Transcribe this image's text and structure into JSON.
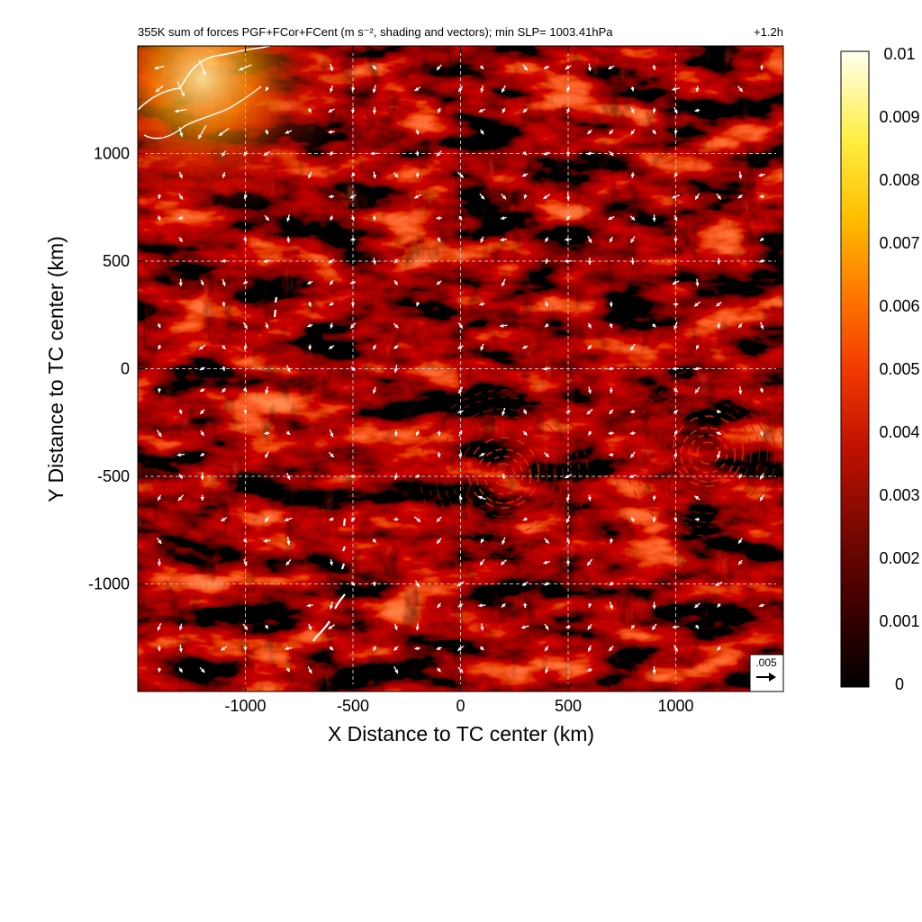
{
  "chart_data": {
    "type": "heatmap",
    "title": "355K sum of forces PGF+FCor+FCent (m s⁻², shading and vectors); min SLP= 1003.41hPa",
    "time_label": "+1.2h",
    "xlabel": "X Distance to TC center (km)",
    "ylabel": "Y Distance to TC center (km)",
    "xlim": [
      -1500,
      1500
    ],
    "ylim": [
      -1500,
      1500
    ],
    "x_ticks": [
      {
        "value": -1000,
        "label": "-1000"
      },
      {
        "value": -500,
        "label": "-500"
      },
      {
        "value": 0,
        "label": "0"
      },
      {
        "value": 500,
        "label": "500"
      },
      {
        "value": 1000,
        "label": "1000"
      }
    ],
    "y_ticks": [
      {
        "value": 1000,
        "label": "1000"
      },
      {
        "value": 500,
        "label": "500"
      },
      {
        "value": 0,
        "label": "0"
      },
      {
        "value": -500,
        "label": "-500"
      },
      {
        "value": -1000,
        "label": "-1000"
      }
    ],
    "grid": true,
    "grid_style": "dashed",
    "colorbar": {
      "min": 0,
      "max": 0.01,
      "colormap": "black-red-yellow-white",
      "tick_labels": [
        "0",
        "0.001",
        "0.002",
        "0.003",
        "0.004",
        "0.005",
        "0.006",
        "0.007",
        "0.008",
        "0.009",
        "0.01"
      ]
    },
    "reference_vector": {
      "label": ".005",
      "value": 0.005
    },
    "vector_grid_spacing_km": 100,
    "features": [
      {
        "name": "storm circulation",
        "x": 200,
        "y": -500
      },
      {
        "name": "secondary circulation",
        "x": 1150,
        "y": -400
      }
    ]
  },
  "colors": {
    "background": "#0a0000",
    "field_dark": "#2a0300",
    "field_mid": "#8a0e00",
    "field_bright": "#d93000",
    "grid": "#bbbbbb",
    "vector": "#ffffff",
    "coastline": "#ffffff"
  }
}
